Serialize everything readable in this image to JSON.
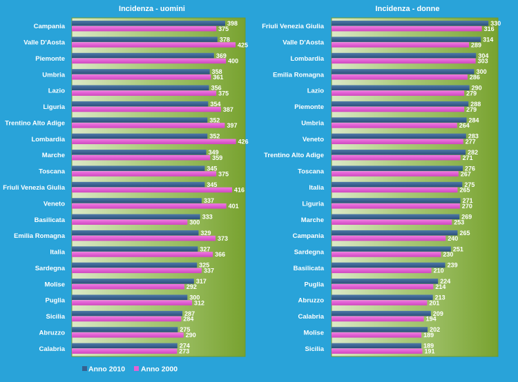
{
  "colors": {
    "background": "#29a3d9",
    "plot_light": "#dce9c8",
    "plot_dark": "#78a22f",
    "series_2010": "#36608f",
    "series_2000": "#e461d4"
  },
  "legend": [
    {
      "label": "Anno 2010",
      "color": "#36608f"
    },
    {
      "label": "Anno 2000",
      "color": "#e461d4"
    }
  ],
  "chart_data": [
    {
      "type": "bar",
      "orientation": "horizontal",
      "title": "Incidenza - uomini",
      "categories": [
        "Campania",
        "Valle D'Aosta",
        "Piemonte",
        "Umbria",
        "Lazio",
        "Liguria",
        "Trentino Alto Adige",
        "Lombardia",
        "Marche",
        "Toscana",
        "Friuli Venezia Giulia",
        "Veneto",
        "Basilicata",
        "Emilia Romagna",
        "Italia",
        "Sardegna",
        "Molise",
        "Puglia",
        "Sicilia",
        "Abruzzo",
        "Calabria"
      ],
      "series": [
        {
          "name": "Anno 2010",
          "values": [
            398,
            378,
            369,
            358,
            356,
            354,
            352,
            352,
            349,
            345,
            345,
            337,
            333,
            329,
            327,
            325,
            317,
            300,
            287,
            275,
            274
          ]
        },
        {
          "name": "Anno 2000",
          "values": [
            375,
            425,
            400,
            361,
            375,
            387,
            397,
            426,
            359,
            375,
            416,
            401,
            300,
            373,
            366,
            337,
            292,
            312,
            284,
            290,
            273
          ]
        }
      ],
      "xlim": [
        0,
        450
      ],
      "grid": false,
      "legend_position": "bottom-left"
    },
    {
      "type": "bar",
      "orientation": "horizontal",
      "title": "Incidenza - donne",
      "categories": [
        "Friuli Venezia Giulia",
        "Valle D'Aosta",
        "Lombardia",
        "Emilia Romagna",
        "Lazio",
        "Piemonte",
        "Umbria",
        "Veneto",
        "Trentino Alto Adige",
        "Toscana",
        "Italia",
        "Liguria",
        "Marche",
        "Campania",
        "Sardegna",
        "Basilicata",
        "Puglia",
        "Abruzzo",
        "Calabria",
        "Molise",
        "Sicilia"
      ],
      "series": [
        {
          "name": "Anno 2010",
          "values": [
            330,
            314,
            304,
            300,
            290,
            288,
            284,
            283,
            282,
            276,
            275,
            271,
            269,
            265,
            251,
            239,
            224,
            213,
            209,
            202,
            189
          ]
        },
        {
          "name": "Anno 2000",
          "values": [
            316,
            289,
            303,
            286,
            279,
            279,
            264,
            277,
            271,
            267,
            265,
            270,
            253,
            240,
            230,
            210,
            214,
            201,
            194,
            189,
            191
          ]
        }
      ],
      "xlim": [
        0,
        350
      ],
      "grid": false
    }
  ]
}
